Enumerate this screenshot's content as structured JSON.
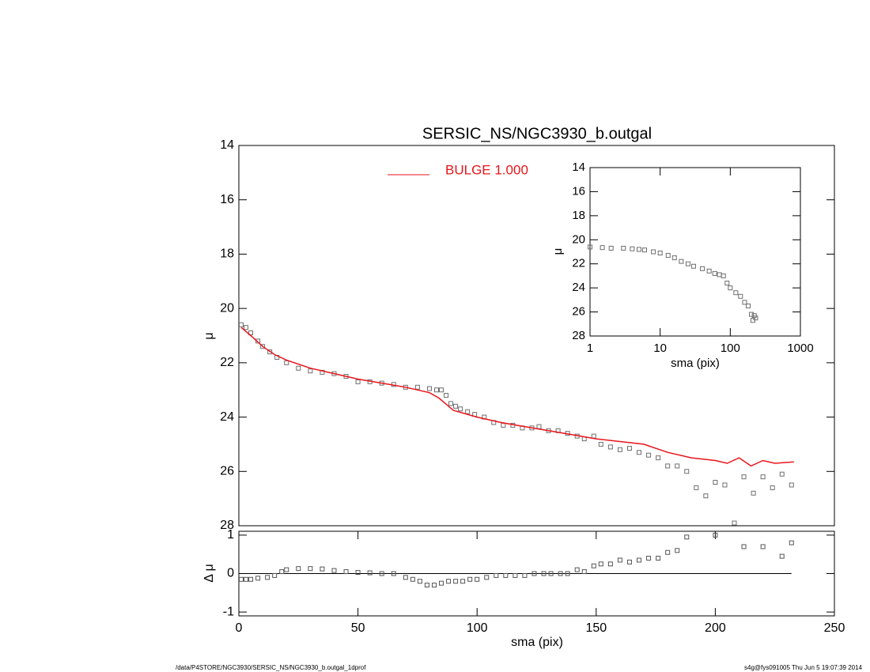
{
  "chart_data": [
    {
      "type": "scatter",
      "title": "SERSIC_NS/NGC3930_b.outgal",
      "ylabel": "μ",
      "xlim": [
        0,
        250
      ],
      "ylim": [
        28,
        14
      ],
      "yticks": [
        14,
        16,
        18,
        20,
        22,
        24,
        26,
        28
      ],
      "series": [
        {
          "color": "#6e6e6e",
          "marker": "square",
          "x": [
            1,
            3,
            5,
            8,
            10,
            13,
            16,
            20,
            25,
            30,
            35,
            40,
            45,
            50,
            55,
            60,
            65,
            70,
            75,
            80,
            83,
            85,
            87,
            89,
            91,
            93,
            96,
            99,
            103,
            107,
            111,
            115,
            119,
            123,
            126,
            130,
            134,
            138,
            142,
            145,
            149,
            152,
            156,
            160,
            164,
            168,
            172,
            176,
            180,
            184,
            188,
            192,
            196,
            200,
            204,
            208,
            212,
            216,
            220,
            224,
            228,
            232
          ],
          "values": [
            20.6,
            20.7,
            20.9,
            21.2,
            21.4,
            21.6,
            21.8,
            22.0,
            22.2,
            22.3,
            22.35,
            22.4,
            22.5,
            22.7,
            22.7,
            22.75,
            22.8,
            22.9,
            22.9,
            22.95,
            23.0,
            23.0,
            23.2,
            23.5,
            23.6,
            23.7,
            23.8,
            23.9,
            24.0,
            24.2,
            24.3,
            24.3,
            24.4,
            24.4,
            24.35,
            24.5,
            24.5,
            24.6,
            24.7,
            24.8,
            24.7,
            25.0,
            25.1,
            25.2,
            25.15,
            25.3,
            25.4,
            25.5,
            25.8,
            25.8,
            26.0,
            26.6,
            26.9,
            26.4,
            26.5,
            27.9,
            26.2,
            26.8,
            26.2,
            26.6,
            26.1,
            26.5
          ]
        },
        {
          "name": "BULGE  1.000",
          "color": "#e8141c",
          "style": "line",
          "x": [
            1,
            5,
            10,
            15,
            20,
            30,
            40,
            50,
            60,
            70,
            80,
            84,
            88,
            90,
            100,
            110,
            120,
            130,
            140,
            150,
            160,
            170,
            180,
            190,
            200,
            205,
            210,
            215,
            220,
            225,
            233
          ],
          "values": [
            20.7,
            21.0,
            21.4,
            21.7,
            21.9,
            22.2,
            22.4,
            22.6,
            22.75,
            22.9,
            23.1,
            23.3,
            23.6,
            23.75,
            24.0,
            24.2,
            24.35,
            24.5,
            24.65,
            24.8,
            24.9,
            25.0,
            25.3,
            25.5,
            25.6,
            25.7,
            25.5,
            25.8,
            25.6,
            25.7,
            25.65
          ]
        }
      ]
    },
    {
      "type": "scatter",
      "ylabel": "Δ μ",
      "xlabel": "sma (pix)",
      "xlim": [
        0,
        250
      ],
      "xticks": [
        0,
        50,
        100,
        150,
        200,
        250
      ],
      "ylim": [
        -1.1,
        1.1
      ],
      "yticks": [
        -1,
        0,
        1
      ],
      "hline": 0,
      "series": [
        {
          "color": "#555555",
          "marker": "square",
          "x": [
            1,
            3,
            5,
            8,
            12,
            15,
            18,
            20,
            25,
            30,
            35,
            40,
            45,
            50,
            55,
            60,
            65,
            70,
            73,
            76,
            79,
            82,
            85,
            88,
            91,
            94,
            97,
            100,
            104,
            108,
            112,
            116,
            120,
            124,
            128,
            131,
            135,
            138,
            142,
            145,
            149,
            152,
            156,
            160,
            164,
            168,
            172,
            176,
            180,
            184,
            188,
            200,
            212,
            220,
            228,
            232
          ],
          "values": [
            -0.15,
            -0.15,
            -0.15,
            -0.12,
            -0.1,
            -0.05,
            0.05,
            0.1,
            0.13,
            0.13,
            0.12,
            0.08,
            0.05,
            0.03,
            0.02,
            0.0,
            0.0,
            -0.1,
            -0.15,
            -0.2,
            -0.3,
            -0.3,
            -0.25,
            -0.2,
            -0.2,
            -0.2,
            -0.15,
            -0.15,
            -0.1,
            -0.05,
            -0.05,
            -0.05,
            -0.05,
            0.0,
            0.0,
            0.0,
            0.0,
            0.0,
            0.1,
            0.05,
            0.2,
            0.25,
            0.25,
            0.35,
            0.3,
            0.35,
            0.4,
            0.4,
            0.55,
            0.6,
            0.95,
            1.0,
            0.7,
            0.7,
            0.45,
            0.8
          ]
        }
      ]
    },
    {
      "type": "scatter",
      "ylabel": "μ",
      "xlabel": "sma (pix)",
      "log_x": true,
      "xlim": [
        1,
        1000
      ],
      "xticks": [
        1,
        10,
        100,
        1000
      ],
      "ylim": [
        28,
        14
      ],
      "yticks": [
        14,
        16,
        18,
        20,
        22,
        24,
        26,
        28
      ],
      "series": [
        {
          "color": "#6e6e6e",
          "marker": "square",
          "x": [
            1,
            1.5,
            2,
            3,
            4,
            5,
            6,
            8,
            10,
            13,
            16,
            20,
            25,
            30,
            40,
            50,
            60,
            70,
            80,
            90,
            100,
            120,
            140,
            160,
            180,
            200,
            210,
            220,
            230
          ],
          "values": [
            20.6,
            20.65,
            20.7,
            20.7,
            20.75,
            20.8,
            20.85,
            21.0,
            21.1,
            21.3,
            21.5,
            21.8,
            22.0,
            22.2,
            22.4,
            22.6,
            22.8,
            22.9,
            23.0,
            23.6,
            24.0,
            24.4,
            24.7,
            25.2,
            25.5,
            26.2,
            26.7,
            26.3,
            26.5
          ]
        }
      ]
    }
  ],
  "footer": {
    "left": "/data/P4STORE/NGC3930/SERSIC_NS/NGC3930_b.outgal_1dprof",
    "right": "s4g@fys091005  Thu Jun  5 19:07:39 2014"
  }
}
